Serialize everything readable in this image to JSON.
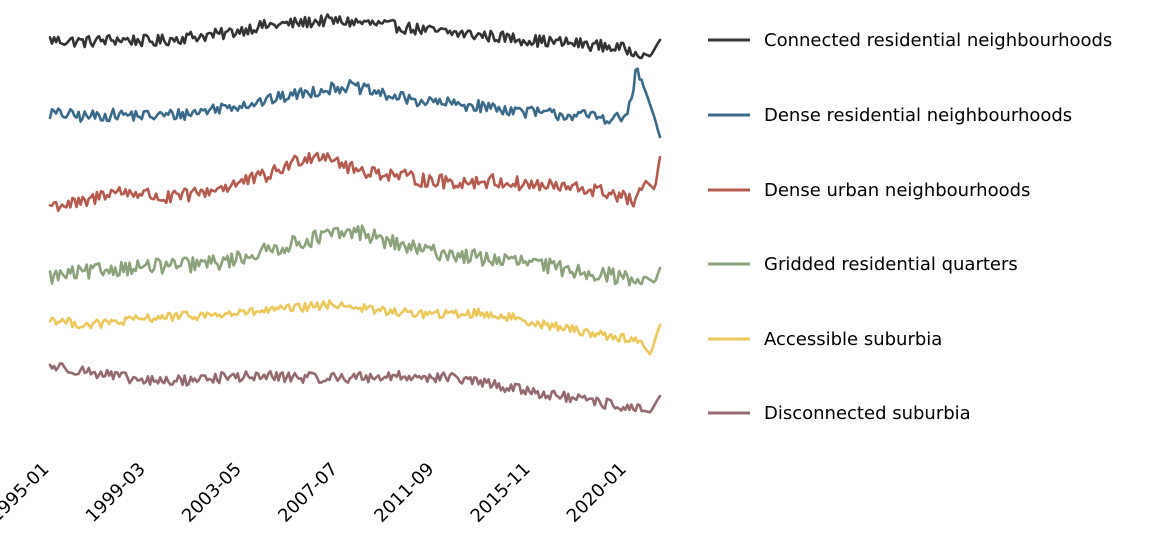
{
  "chart_data": {
    "type": "line",
    "title": "",
    "xlabel": "",
    "ylabel": "",
    "x_ticks": [
      "1995-01",
      "1999-03",
      "2003-05",
      "2007-07",
      "2011-09",
      "2015-11",
      "2020-01"
    ],
    "x_range": [
      "1995-01",
      "2021-06"
    ],
    "y_axis_visible": false,
    "grid": false,
    "legend_position": "right",
    "series": [
      {
        "name": "Connected residential neighbourhoods",
        "color": "#333333",
        "anchors": [
          [
            1995.0,
            0.5
          ],
          [
            1996.5,
            0.44
          ],
          [
            1998.0,
            0.52
          ],
          [
            1999.5,
            0.45
          ],
          [
            2001.0,
            0.6
          ],
          [
            2002.5,
            0.7
          ],
          [
            2004.0,
            0.95
          ],
          [
            2005.5,
            1.05
          ],
          [
            2007.0,
            1.15
          ],
          [
            2008.5,
            1.08
          ],
          [
            2010.0,
            0.95
          ],
          [
            2011.5,
            0.8
          ],
          [
            2013.0,
            0.7
          ],
          [
            2014.5,
            0.6
          ],
          [
            2016.0,
            0.48
          ],
          [
            2017.5,
            0.4
          ],
          [
            2019.0,
            0.3
          ],
          [
            2020.5,
            0.12
          ],
          [
            2021.0,
            -0.05
          ],
          [
            2021.4,
            0.5
          ]
        ],
        "noise": 0.2
      },
      {
        "name": "Dense residential neighbourhoods",
        "color": "#3a6a8a",
        "anchors": [
          [
            1995.0,
            0.5
          ],
          [
            1996.5,
            0.38
          ],
          [
            1998.0,
            0.45
          ],
          [
            1999.5,
            0.4
          ],
          [
            2001.0,
            0.48
          ],
          [
            2002.5,
            0.7
          ],
          [
            2004.0,
            0.85
          ],
          [
            2005.5,
            1.1
          ],
          [
            2007.0,
            1.3
          ],
          [
            2008.0,
            1.4
          ],
          [
            2009.5,
            1.1
          ],
          [
            2011.0,
            0.9
          ],
          [
            2012.5,
            0.8
          ],
          [
            2014.0,
            0.7
          ],
          [
            2015.5,
            0.55
          ],
          [
            2017.0,
            0.45
          ],
          [
            2018.5,
            0.4
          ],
          [
            2019.5,
            0.3
          ],
          [
            2020.0,
            0.4
          ],
          [
            2020.4,
            1.9
          ],
          [
            2020.8,
            1.2
          ],
          [
            2021.2,
            0.3
          ],
          [
            2021.4,
            -0.3
          ]
        ],
        "noise": 0.2
      },
      {
        "name": "Dense urban neighbourhoods",
        "color": "#b55a4e",
        "anchors": [
          [
            1995.0,
            0.0
          ],
          [
            1996.5,
            0.05
          ],
          [
            1997.5,
            0.45
          ],
          [
            1999.0,
            0.4
          ],
          [
            2000.0,
            0.2
          ],
          [
            2001.5,
            0.4
          ],
          [
            2003.0,
            0.7
          ],
          [
            2004.5,
            1.0
          ],
          [
            2006.0,
            1.6
          ],
          [
            2007.0,
            1.7
          ],
          [
            2008.0,
            1.2
          ],
          [
            2009.5,
            1.05
          ],
          [
            2011.0,
            0.85
          ],
          [
            2012.5,
            0.75
          ],
          [
            2014.0,
            0.8
          ],
          [
            2015.5,
            0.7
          ],
          [
            2017.0,
            0.6
          ],
          [
            2018.5,
            0.5
          ],
          [
            2019.5,
            0.35
          ],
          [
            2020.3,
            0.1
          ],
          [
            2020.8,
            0.8
          ],
          [
            2021.2,
            0.5
          ],
          [
            2021.4,
            1.6
          ]
        ],
        "noise": 0.24
      },
      {
        "name": "Gridded residential quarters",
        "color": "#8ca27a",
        "anchors": [
          [
            1995.0,
            0.1
          ],
          [
            1996.5,
            0.25
          ],
          [
            1998.0,
            0.4
          ],
          [
            1999.5,
            0.45
          ],
          [
            2001.0,
            0.5
          ],
          [
            2002.5,
            0.6
          ],
          [
            2004.0,
            0.9
          ],
          [
            2005.5,
            1.2
          ],
          [
            2007.0,
            1.5
          ],
          [
            2008.5,
            1.6
          ],
          [
            2009.5,
            1.3
          ],
          [
            2011.0,
            1.0
          ],
          [
            2012.5,
            0.85
          ],
          [
            2014.0,
            0.7
          ],
          [
            2015.5,
            0.6
          ],
          [
            2017.0,
            0.4
          ],
          [
            2018.5,
            0.25
          ],
          [
            2020.0,
            0.05
          ],
          [
            2020.8,
            0.1
          ],
          [
            2021.2,
            -0.1
          ],
          [
            2021.4,
            0.4
          ]
        ],
        "noise": 0.26
      },
      {
        "name": "Accessible suburbia",
        "color": "#ecc85a",
        "anchors": [
          [
            1995.0,
            0.7
          ],
          [
            1996.5,
            0.5
          ],
          [
            1998.0,
            0.6
          ],
          [
            1999.5,
            0.75
          ],
          [
            2001.0,
            0.8
          ],
          [
            2002.5,
            0.85
          ],
          [
            2004.0,
            0.95
          ],
          [
            2005.5,
            1.05
          ],
          [
            2007.5,
            1.2
          ],
          [
            2009.0,
            1.0
          ],
          [
            2010.5,
            0.9
          ],
          [
            2012.0,
            0.85
          ],
          [
            2013.5,
            0.9
          ],
          [
            2015.0,
            0.75
          ],
          [
            2016.5,
            0.5
          ],
          [
            2018.0,
            0.3
          ],
          [
            2019.5,
            0.1
          ],
          [
            2020.5,
            0.0
          ],
          [
            2021.0,
            -0.5
          ],
          [
            2021.4,
            0.5
          ]
        ],
        "noise": 0.15
      },
      {
        "name": "Disconnected suburbia",
        "color": "#946a70",
        "anchors": [
          [
            1995.0,
            1.3
          ],
          [
            1996.0,
            1.2
          ],
          [
            1997.5,
            1.0
          ],
          [
            1999.0,
            0.8
          ],
          [
            2000.5,
            0.8
          ],
          [
            2002.0,
            0.9
          ],
          [
            2003.5,
            0.95
          ],
          [
            2005.0,
            0.95
          ],
          [
            2006.5,
            0.9
          ],
          [
            2008.0,
            0.92
          ],
          [
            2009.5,
            0.95
          ],
          [
            2011.0,
            0.95
          ],
          [
            2012.5,
            0.9
          ],
          [
            2014.0,
            0.7
          ],
          [
            2015.5,
            0.5
          ],
          [
            2017.0,
            0.3
          ],
          [
            2018.5,
            0.1
          ],
          [
            2019.5,
            0.0
          ],
          [
            2020.5,
            -0.15
          ],
          [
            2021.0,
            -0.25
          ],
          [
            2021.4,
            0.3
          ]
        ],
        "noise": 0.18
      }
    ]
  }
}
